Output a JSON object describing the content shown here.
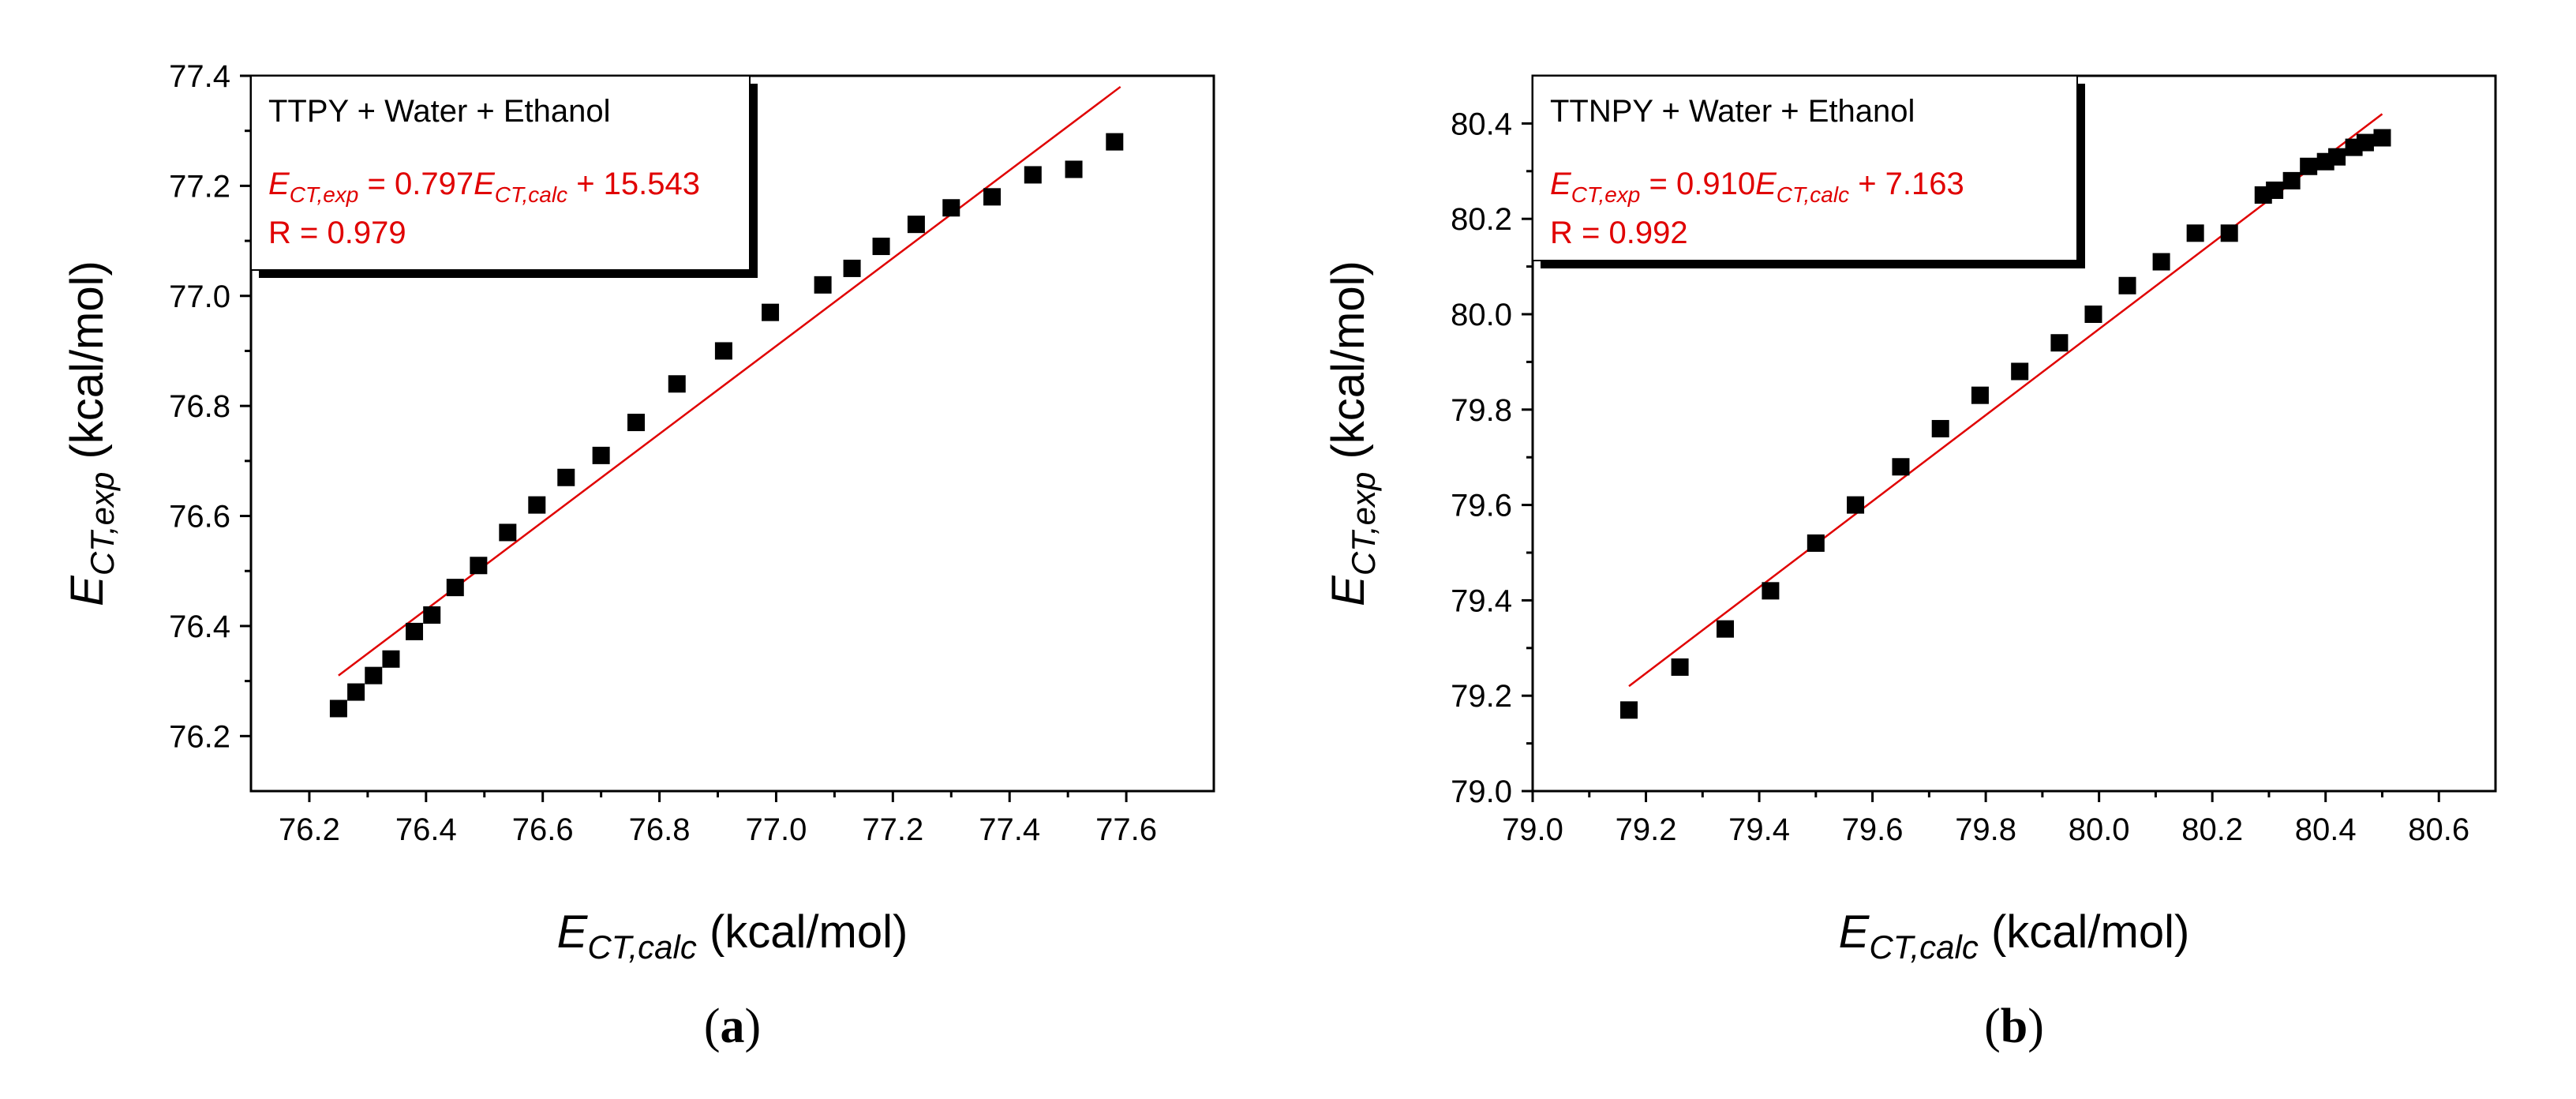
{
  "chart_data": [
    {
      "type": "scatter",
      "panel_label": "(a)",
      "panel_letter": "a",
      "xlabel_main": "E",
      "xlabel_sub": "CT,calc",
      "xlabel_unit": "(kcal/mol)",
      "ylabel_main": "E",
      "ylabel_sub": "CT,exp",
      "ylabel_unit": "(kcal/mol)",
      "xlim": [
        76.1,
        77.75
      ],
      "ylim": [
        76.1,
        77.4
      ],
      "xticks": [
        76.2,
        76.4,
        76.6,
        76.8,
        77.0,
        77.2,
        77.4,
        77.6
      ],
      "yticks": [
        76.2,
        76.4,
        76.6,
        76.8,
        77.0,
        77.2,
        77.4
      ],
      "tick_decimals": 1,
      "legend": {
        "title": "TTPY + Water + Ethanol",
        "eq_prefix": "E",
        "eq_sub1": "CT,exp",
        "eq_mid": " = 0.797",
        "eq_sub2": "CT,calc",
        "eq_suffix": " + 15.543",
        "r_text": "R = 0.979"
      },
      "fit": {
        "slope": 0.797,
        "intercept": 15.543,
        "x_range": [
          76.25,
          77.59
        ],
        "y_range": [
          76.31,
          77.38
        ]
      },
      "series": [
        {
          "name": "data",
          "x": [
            76.25,
            76.28,
            76.31,
            76.34,
            76.38,
            76.41,
            76.45,
            76.49,
            76.54,
            76.59,
            76.64,
            76.7,
            76.76,
            76.83,
            76.91,
            76.99,
            77.08,
            77.13,
            77.18,
            77.24,
            77.3,
            77.37,
            77.44,
            77.51,
            77.58
          ],
          "y": [
            76.25,
            76.28,
            76.31,
            76.34,
            76.39,
            76.42,
            76.47,
            76.51,
            76.57,
            76.62,
            76.67,
            76.71,
            76.77,
            76.84,
            76.9,
            76.97,
            77.02,
            77.05,
            77.09,
            77.13,
            77.16,
            77.18,
            77.22,
            77.23,
            77.28
          ]
        }
      ]
    },
    {
      "type": "scatter",
      "panel_label": "(b)",
      "panel_letter": "b",
      "xlabel_main": "E",
      "xlabel_sub": "CT,calc",
      "xlabel_unit": "(kcal/mol)",
      "ylabel_main": "E",
      "ylabel_sub": "CT,exp",
      "ylabel_unit": "(kcal/mol)",
      "xlim": [
        79.0,
        80.7
      ],
      "ylim": [
        79.0,
        80.5
      ],
      "xticks": [
        79.0,
        79.2,
        79.4,
        79.6,
        79.8,
        80.0,
        80.2,
        80.4,
        80.6
      ],
      "yticks": [
        79.0,
        79.2,
        79.4,
        79.6,
        79.8,
        80.0,
        80.2,
        80.4
      ],
      "tick_decimals": 1,
      "legend": {
        "title": "TTNPY + Water + Ethanol",
        "eq_prefix": "E",
        "eq_sub1": "CT,exp",
        "eq_mid": " = 0.910",
        "eq_sub2": "CT,calc",
        "eq_suffix": " + 7.163",
        "r_text": "R = 0.992"
      },
      "fit": {
        "slope": 0.91,
        "intercept": 7.163,
        "x_range": [
          79.17,
          80.5
        ],
        "y_range": [
          79.22,
          80.42
        ]
      },
      "series": [
        {
          "name": "data",
          "x": [
            79.17,
            79.26,
            79.34,
            79.42,
            79.5,
            79.57,
            79.65,
            79.72,
            79.79,
            79.86,
            79.93,
            79.99,
            80.05,
            80.11,
            80.17,
            80.23,
            80.29,
            80.31,
            80.34,
            80.37,
            80.4,
            80.42,
            80.45,
            80.47,
            80.5
          ],
          "y": [
            79.17,
            79.26,
            79.34,
            79.42,
            79.52,
            79.6,
            79.68,
            79.76,
            79.83,
            79.88,
            79.94,
            80.0,
            80.06,
            80.11,
            80.17,
            80.17,
            80.25,
            80.26,
            80.28,
            80.31,
            80.32,
            80.33,
            80.35,
            80.36,
            80.37
          ]
        }
      ]
    }
  ]
}
